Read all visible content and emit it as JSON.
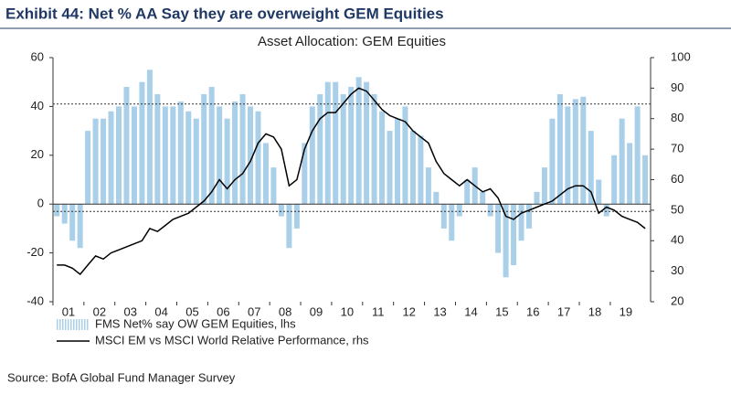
{
  "chart_data": {
    "type": "bar_line",
    "header": "Exhibit 44: Net % AA Say they are overweight GEM Equities",
    "title": "Asset Allocation: GEM Equities",
    "source": "Source: BofA Global Fund Manager Survey",
    "x": [
      2001.125,
      2001.375,
      2001.625,
      2001.875,
      2002.125,
      2002.375,
      2002.625,
      2002.875,
      2003.125,
      2003.375,
      2003.625,
      2003.875,
      2004.125,
      2004.375,
      2004.625,
      2004.875,
      2005.125,
      2005.375,
      2005.625,
      2005.875,
      2006.125,
      2006.375,
      2006.625,
      2006.875,
      2007.125,
      2007.375,
      2007.625,
      2007.875,
      2008.125,
      2008.375,
      2008.625,
      2008.875,
      2009.125,
      2009.375,
      2009.625,
      2009.875,
      2010.125,
      2010.375,
      2010.625,
      2010.875,
      2011.125,
      2011.375,
      2011.625,
      2011.875,
      2012.125,
      2012.375,
      2012.625,
      2012.875,
      2013.125,
      2013.375,
      2013.625,
      2013.875,
      2014.125,
      2014.375,
      2014.625,
      2014.875,
      2015.125,
      2015.375,
      2015.625,
      2015.875,
      2016.125,
      2016.375,
      2016.625,
      2016.875,
      2017.125,
      2017.375,
      2017.625,
      2017.875,
      2018.125,
      2018.375,
      2018.625,
      2018.875,
      2019.125,
      2019.375,
      2019.625,
      2019.875,
      2020.125
    ],
    "series": [
      {
        "name": "FMS Net% say OW GEM Equities, lhs",
        "color": "#a9cfe9",
        "type": "bar",
        "axis": "y",
        "values": [
          -5,
          -8,
          -15,
          -18,
          30,
          35,
          35,
          38,
          40,
          48,
          40,
          50,
          55,
          45,
          40,
          40,
          42,
          38,
          35,
          45,
          48,
          40,
          35,
          42,
          45,
          40,
          38,
          25,
          15,
          -5,
          -18,
          -10,
          25,
          40,
          45,
          50,
          50,
          45,
          48,
          52,
          50,
          45,
          38,
          30,
          35,
          40,
          30,
          28,
          15,
          5,
          -10,
          -15,
          -5,
          10,
          15,
          5,
          -5,
          -20,
          -30,
          -25,
          -15,
          -10,
          5,
          15,
          35,
          45,
          40,
          43,
          44,
          30,
          10,
          -5,
          20,
          35,
          25,
          40,
          20
        ]
      },
      {
        "name": "MSCI EM vs MSCI World Relative Performance, rhs",
        "color": "#000000",
        "type": "line",
        "axis": "y2",
        "values": [
          32,
          32,
          31,
          29,
          32,
          35,
          34,
          36,
          37,
          38,
          39,
          40,
          44,
          43,
          45,
          47,
          48,
          49,
          51,
          53,
          56,
          60,
          57,
          60,
          62,
          66,
          72,
          75,
          74,
          70,
          58,
          60,
          70,
          76,
          80,
          82,
          82,
          85,
          88,
          90,
          89,
          86,
          83,
          81,
          80,
          79,
          76,
          74,
          72,
          66,
          62,
          60,
          58,
          60,
          58,
          56,
          57,
          54,
          48,
          47,
          49,
          50,
          51,
          52,
          53,
          55,
          57,
          58,
          58,
          56,
          49,
          51,
          50,
          48,
          47,
          46,
          44
        ]
      }
    ],
    "xlim": [
      2001.0,
      2020.3
    ],
    "xticks": [
      {
        "value": 2001.5,
        "label": "01"
      },
      {
        "value": 2002.5,
        "label": "02"
      },
      {
        "value": 2003.5,
        "label": "03"
      },
      {
        "value": 2004.5,
        "label": "04"
      },
      {
        "value": 2005.5,
        "label": "05"
      },
      {
        "value": 2006.5,
        "label": "06"
      },
      {
        "value": 2007.5,
        "label": "07"
      },
      {
        "value": 2008.5,
        "label": "08"
      },
      {
        "value": 2009.5,
        "label": "09"
      },
      {
        "value": 2010.5,
        "label": "10"
      },
      {
        "value": 2011.5,
        "label": "11"
      },
      {
        "value": 2012.5,
        "label": "12"
      },
      {
        "value": 2013.5,
        "label": "13"
      },
      {
        "value": 2014.5,
        "label": "14"
      },
      {
        "value": 2015.5,
        "label": "15"
      },
      {
        "value": 2016.5,
        "label": "16"
      },
      {
        "value": 2017.5,
        "label": "17"
      },
      {
        "value": 2018.5,
        "label": "18"
      },
      {
        "value": 2019.5,
        "label": "19"
      }
    ],
    "ylim": [
      -40,
      60
    ],
    "yticks": [
      -40,
      -20,
      0,
      20,
      40,
      60
    ],
    "y2lim": [
      20,
      100
    ],
    "y2ticks": [
      20,
      30,
      40,
      50,
      60,
      70,
      80,
      90,
      100
    ],
    "reference_lines": [
      41,
      -3
    ]
  }
}
